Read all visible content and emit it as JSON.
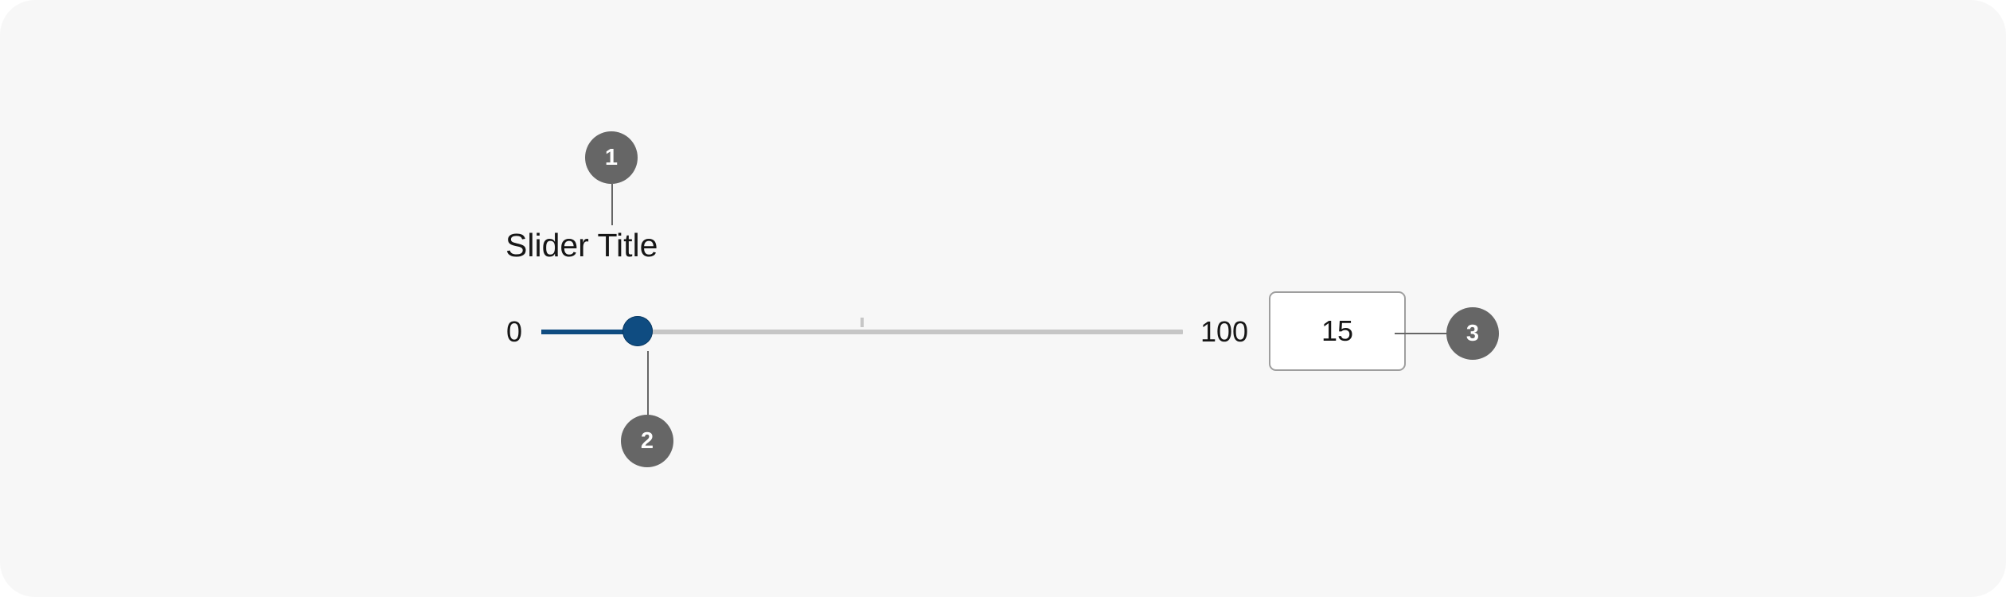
{
  "slider": {
    "title": "Slider Title",
    "min_label": "0",
    "max_label": "100",
    "min": 0,
    "max": 100,
    "value": 15,
    "input_value": "15",
    "fill_color": "#0f4c81",
    "track_color": "#c6c6c6"
  },
  "callouts": [
    {
      "label": "1"
    },
    {
      "label": "2"
    },
    {
      "label": "3"
    }
  ]
}
